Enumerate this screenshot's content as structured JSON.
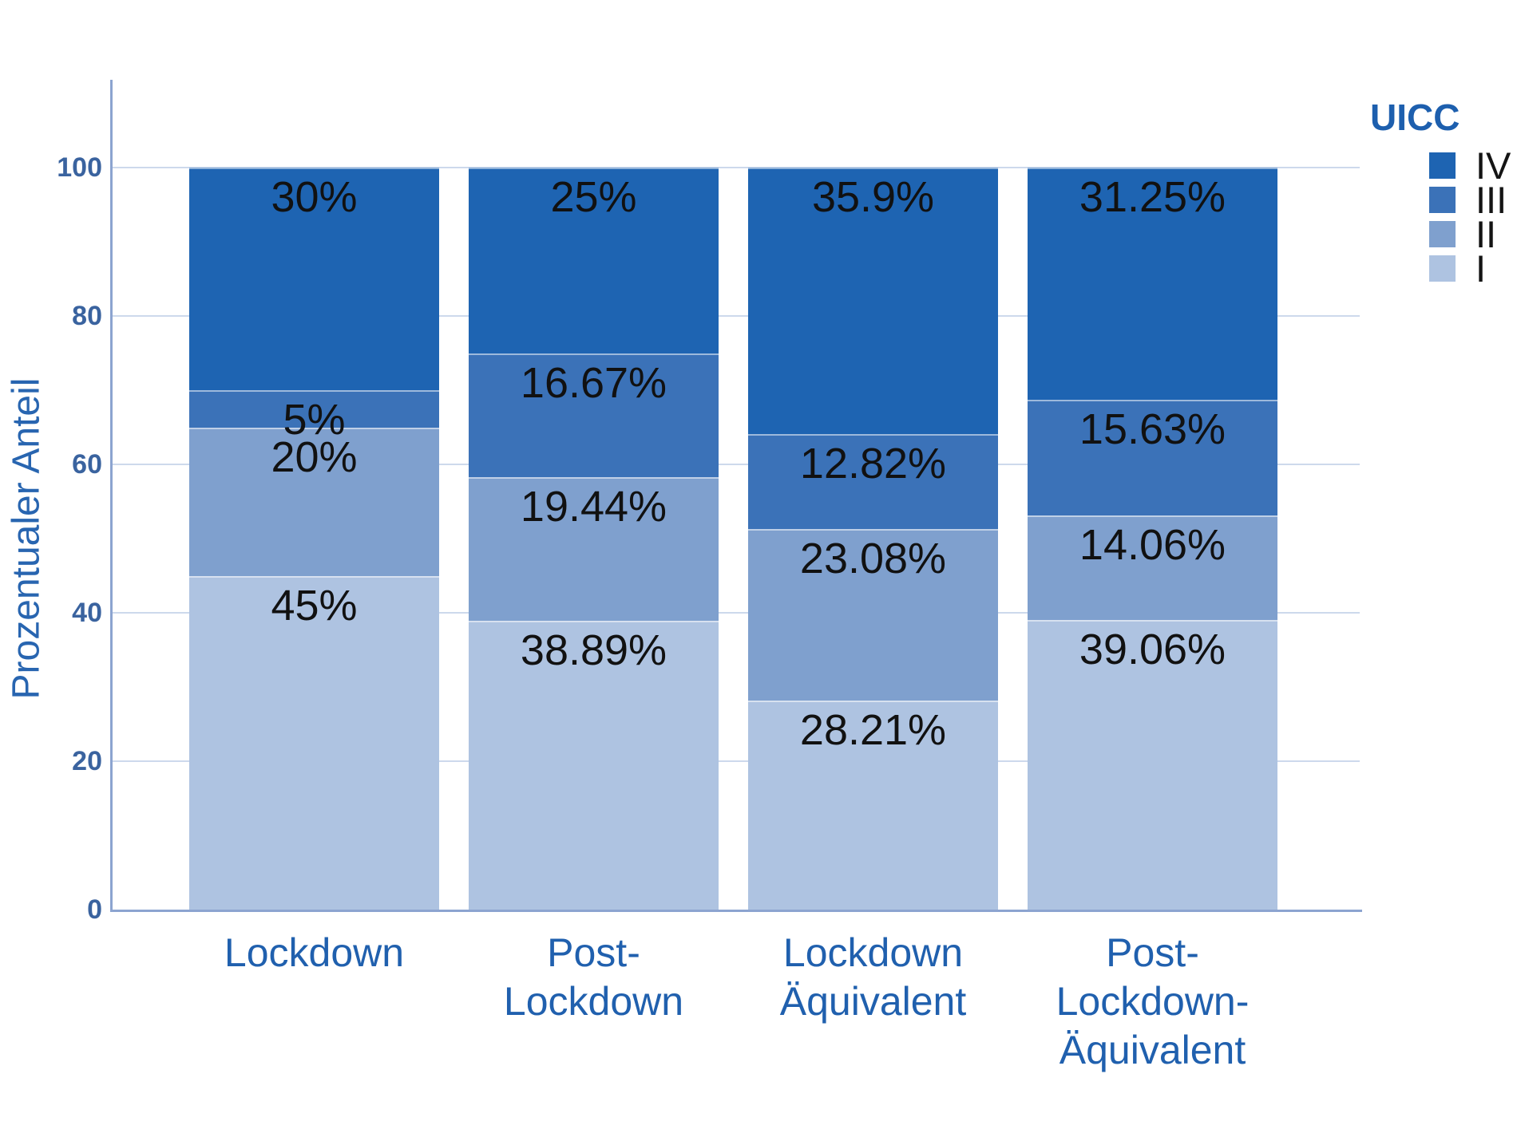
{
  "chart_data": {
    "type": "bar",
    "stacked": true,
    "orientation": "vertical",
    "title": "",
    "xlabel": "",
    "ylabel": "Prozentualer Anteil",
    "ylim": [
      0,
      100
    ],
    "yticks": [
      0,
      20,
      40,
      60,
      80,
      100
    ],
    "ytick_labels": [
      "0",
      "20",
      "40",
      "60",
      "80",
      "100"
    ],
    "grid": true,
    "legend_title": "UICC",
    "legend_position": "top-right",
    "legend_order_top_to_bottom": [
      "IV",
      "III",
      "II",
      "I"
    ],
    "categories": [
      [
        "Lockdown"
      ],
      [
        "Post-",
        "Lockdown"
      ],
      [
        "Lockdown",
        "Äquivalent"
      ],
      [
        "Post-",
        "Lockdown-",
        "Äquivalent"
      ]
    ],
    "series": [
      {
        "name": "I",
        "color": "#aec3e1",
        "values": [
          45,
          38.89,
          28.21,
          39.06
        ],
        "labels": [
          "45%",
          "38.89%",
          "28.21%",
          "39.06%"
        ]
      },
      {
        "name": "II",
        "color": "#7fa0ce",
        "values": [
          20,
          19.44,
          23.08,
          14.06
        ],
        "labels": [
          "20%",
          "19.44%",
          "23.08%",
          "14.06%"
        ]
      },
      {
        "name": "III",
        "color": "#3b72b8",
        "values": [
          5,
          16.67,
          12.82,
          15.63
        ],
        "labels": [
          "5%",
          "16.67%",
          "12.82%",
          "15.63%"
        ]
      },
      {
        "name": "IV",
        "color": "#1e64b2",
        "values": [
          30,
          25,
          35.9,
          31.25
        ],
        "labels": [
          "30%",
          "25%",
          "35.9%",
          "31.25%"
        ]
      }
    ]
  },
  "colors": {
    "background": "#ffffff",
    "axis": "#8ca4d0",
    "gridline": "#cdd9ec",
    "tick_label": "#3a639f",
    "category_label": "#2060ae",
    "y_axis_title": "#2865b0",
    "legend_title": "#1d5fae",
    "segment_value_label": "#111111"
  }
}
